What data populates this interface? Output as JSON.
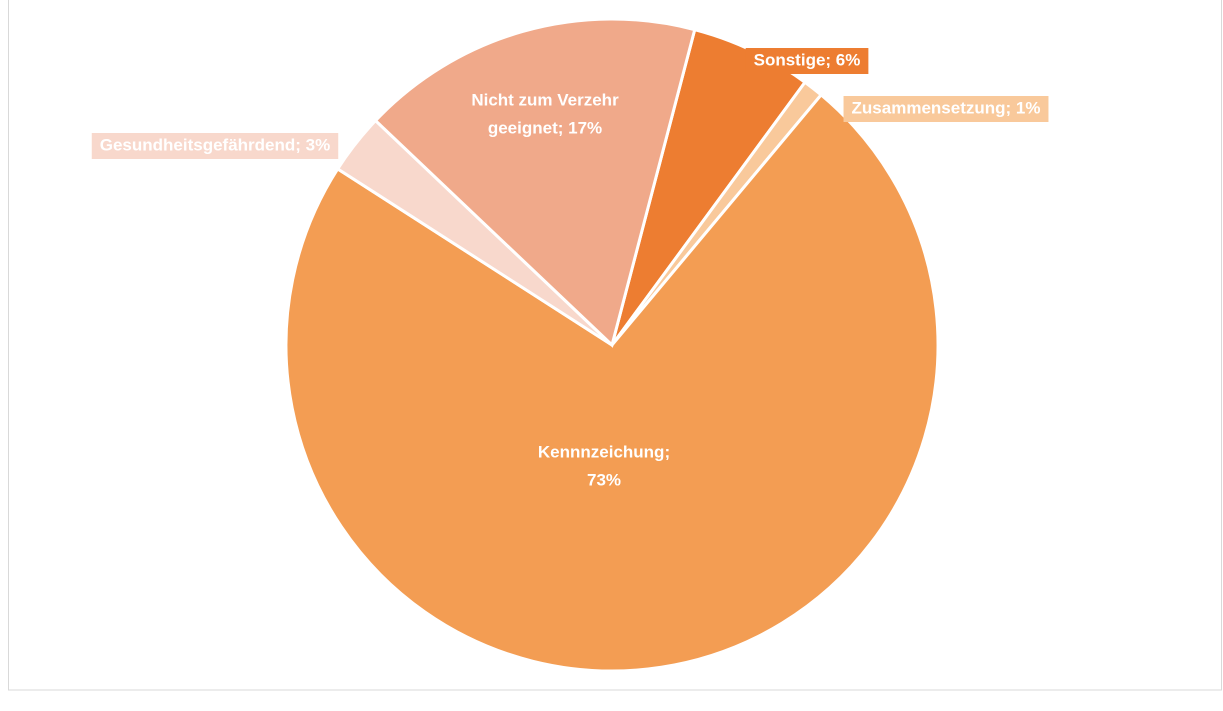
{
  "chart_data": {
    "type": "pie",
    "categories": [
      "Sonstige",
      "Zusammensetzung",
      "Kennnzeichung",
      "Gesundheitsgefährdend",
      "Nicht zum Verzehr geeignet"
    ],
    "values": [
      6,
      1,
      73,
      3,
      17
    ],
    "value_labels": [
      [
        "Sonstige; 6%"
      ],
      [
        "Zusammensetzung; 1%"
      ],
      [
        "Kennnzeichung;",
        "73%"
      ],
      [
        "Gesundheitsgefährdend; 3%"
      ],
      [
        "Nicht zum Verzehr",
        "geeignet; 17%"
      ]
    ],
    "colors": [
      "#ed7d31",
      "#f9c99b",
      "#f39d53",
      "#f8d8cc",
      "#f0a98a"
    ]
  }
}
